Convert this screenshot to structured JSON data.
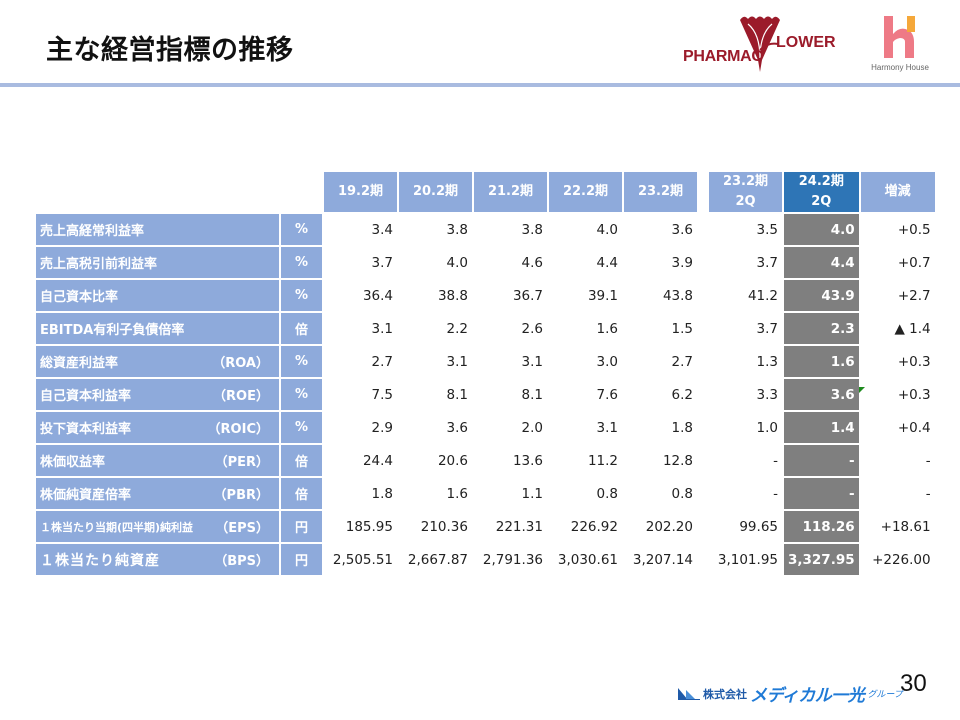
{
  "header": {
    "title": "主な経営指標の推移",
    "logos": {
      "pharma_left": "PHARMAC",
      "pharma_right": "LOWER",
      "harmony": "Harmony House"
    }
  },
  "table": {
    "columns": [
      {
        "line1": "19.2期",
        "line2": ""
      },
      {
        "line1": "20.2期",
        "line2": ""
      },
      {
        "line1": "21.2期",
        "line2": ""
      },
      {
        "line1": "22.2期",
        "line2": ""
      },
      {
        "line1": "23.2期",
        "line2": ""
      },
      {
        "line1": "23.2期",
        "line2": "2Q"
      },
      {
        "line1": "24.2期",
        "line2": "2Q"
      },
      {
        "line1": "増減",
        "line2": ""
      }
    ],
    "rows": [
      {
        "name": "売上高経常利益率",
        "abbr": "",
        "unit": "%",
        "values": [
          "3.4",
          "3.8",
          "3.8",
          "4.0",
          "3.6",
          "3.5",
          "4.0",
          "+0.5"
        ]
      },
      {
        "name": "売上高税引前利益率",
        "abbr": "",
        "unit": "%",
        "values": [
          "3.7",
          "4.0",
          "4.6",
          "4.4",
          "3.9",
          "3.7",
          "4.4",
          "+0.7"
        ]
      },
      {
        "name": "自己資本比率",
        "abbr": "",
        "unit": "%",
        "values": [
          "36.4",
          "38.8",
          "36.7",
          "39.1",
          "43.8",
          "41.2",
          "43.9",
          "+2.7"
        ]
      },
      {
        "name": "EBITDA有利子負債倍率",
        "abbr": "",
        "unit": "倍",
        "values": [
          "3.1",
          "2.2",
          "2.6",
          "1.6",
          "1.5",
          "3.7",
          "2.3",
          "▲ 1.4"
        ]
      },
      {
        "name": "総資産利益率",
        "abbr": "（ROA）",
        "unit": "%",
        "values": [
          "2.7",
          "3.1",
          "3.1",
          "3.0",
          "2.7",
          "1.3",
          "1.6",
          "+0.3"
        ]
      },
      {
        "name": "自己資本利益率",
        "abbr": "（ROE）",
        "unit": "%",
        "values": [
          "7.5",
          "8.1",
          "8.1",
          "7.6",
          "6.2",
          "3.3",
          "3.6",
          "+0.3"
        ]
      },
      {
        "name": "投下資本利益率",
        "abbr": "（ROIC）",
        "unit": "%",
        "values": [
          "2.9",
          "3.6",
          "2.0",
          "3.1",
          "1.8",
          "1.0",
          "1.4",
          "+0.4"
        ]
      },
      {
        "name": "株価収益率",
        "abbr": "（PER）",
        "unit": "倍",
        "values": [
          "24.4",
          "20.6",
          "13.6",
          "11.2",
          "12.8",
          "-",
          "-",
          "-"
        ]
      },
      {
        "name": "株価純資産倍率",
        "abbr": "（PBR）",
        "unit": "倍",
        "values": [
          "1.8",
          "1.6",
          "1.1",
          "0.8",
          "0.8",
          "-",
          "-",
          "-"
        ]
      },
      {
        "name": "１株当たり当期(四半期)純利益",
        "abbr": "（EPS）",
        "unit": "円",
        "values": [
          "185.95",
          "210.36",
          "221.31",
          "226.92",
          "202.20",
          "99.65",
          "118.26",
          "+18.61"
        ]
      },
      {
        "name": "１株当たり純資産",
        "abbr": "（BPS）",
        "unit": "円",
        "values": [
          "2,505.51",
          "2,667.87",
          "2,791.36",
          "3,030.61",
          "3,207.14",
          "3,101.95",
          "3,327.95",
          "+226.00"
        ]
      }
    ]
  },
  "colors": {
    "header_blue": "#8eaadb",
    "highlight_blue": "#2e75b6",
    "highlight_gray": "#7f7f7f",
    "rule": "#a9bbe0"
  },
  "footer": {
    "company_prefix": "株式会社",
    "company_brand": "メディカル一光",
    "company_suffix": "グループ",
    "page_number": "30"
  }
}
